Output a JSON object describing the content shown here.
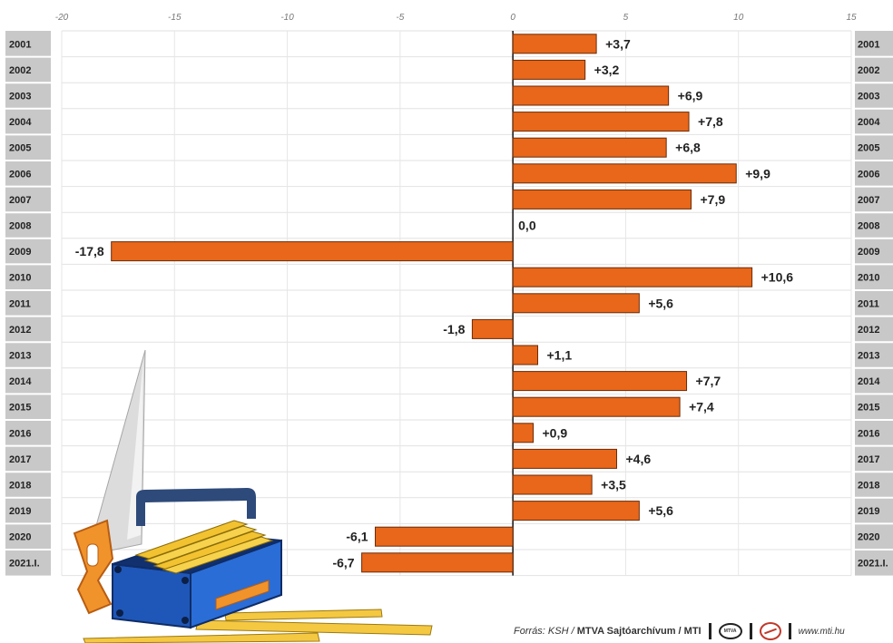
{
  "chart_data": {
    "type": "bar",
    "orientation": "horizontal",
    "xlim": [
      -20,
      15
    ],
    "x_ticks": [
      -20,
      -15,
      -10,
      -5,
      0,
      5,
      10,
      15
    ],
    "x_tick_labels": [
      "-20",
      "-15",
      "-10",
      "-5",
      "0",
      "5",
      "10",
      "15"
    ],
    "categories": [
      "2001",
      "2002",
      "2003",
      "2004",
      "2005",
      "2006",
      "2007",
      "2008",
      "2009",
      "2010",
      "2011",
      "2012",
      "2013",
      "2014",
      "2015",
      "2016",
      "2017",
      "2018",
      "2019",
      "2020",
      "2021.I."
    ],
    "values": [
      3.7,
      3.2,
      6.9,
      7.8,
      6.8,
      9.9,
      7.9,
      0.0,
      -17.8,
      10.6,
      5.6,
      -1.8,
      1.1,
      7.7,
      7.4,
      0.9,
      4.6,
      3.5,
      5.6,
      -6.1,
      -6.7
    ],
    "value_labels": [
      "+3,7",
      "+3,2",
      "+6,9",
      "+7,8",
      "+6,8",
      "+9,9",
      "+7,9",
      "0,0",
      "-17,8",
      "+10,6",
      "+5,6",
      "-1,8",
      "+1,1",
      "+7,7",
      "+7,4",
      "+0,9",
      "+4,6",
      "+3,5",
      "+5,6",
      "-6,1",
      "-6,7"
    ],
    "grid": true,
    "bar_color": "#e8671a",
    "bar_edge_color": "#6b2a06",
    "year_box_color": "#c8c8c8"
  },
  "footer": {
    "source_label": "Forrás: KSH /",
    "source_bold": "MTVA Sajtóarchívum / MTI",
    "logo_text": "MTVA",
    "url": "www.mti.hu"
  }
}
